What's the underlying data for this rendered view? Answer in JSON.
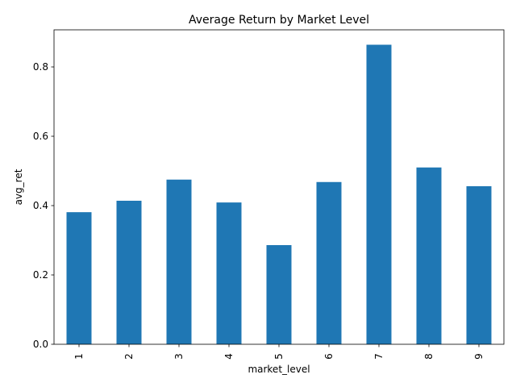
{
  "chart_data": {
    "type": "bar",
    "title": "Average Return by Market Level",
    "xlabel": "market_level",
    "ylabel": "avg_ret",
    "categories": [
      "1",
      "2",
      "3",
      "4",
      "5",
      "6",
      "7",
      "8",
      "9"
    ],
    "values": [
      0.381,
      0.414,
      0.475,
      0.409,
      0.286,
      0.468,
      0.864,
      0.51,
      0.456
    ],
    "ylim": [
      0,
      0.907
    ],
    "yticks": [
      0.0,
      0.2,
      0.4,
      0.6,
      0.8
    ],
    "ytick_labels": [
      "0.0",
      "0.2",
      "0.4",
      "0.6",
      "0.8"
    ],
    "bar_color": "#1f77b4",
    "grid": false,
    "legend": "none",
    "xtick_rotation": "vertical"
  }
}
